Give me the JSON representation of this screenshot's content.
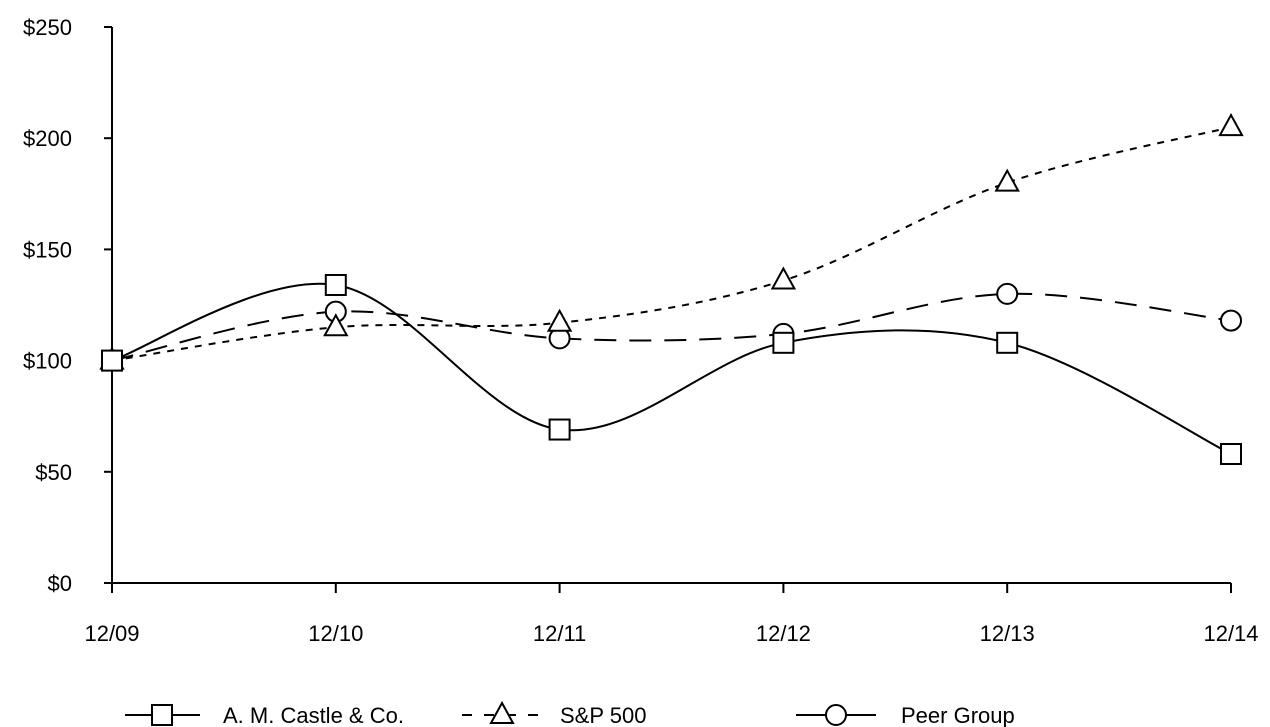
{
  "chart_data": {
    "type": "line",
    "title": "",
    "xlabel": "",
    "ylabel": "",
    "categories": [
      "12/09",
      "12/10",
      "12/11",
      "12/12",
      "12/13",
      "12/14"
    ],
    "y_ticks": [
      "$0",
      "$50",
      "$100",
      "$150",
      "$200",
      "$250"
    ],
    "y_tick_values": [
      0,
      50,
      100,
      150,
      200,
      250
    ],
    "ylim": [
      0,
      250
    ],
    "grid": false,
    "legend_position": "bottom",
    "series": [
      {
        "name": "A. M. Castle & Co.",
        "values": [
          100,
          134,
          69,
          108,
          108,
          58
        ],
        "marker": "square",
        "line_style": "solid"
      },
      {
        "name": "S&P 500",
        "values": [
          100,
          115,
          117,
          136,
          180,
          205
        ],
        "marker": "triangle",
        "line_style": "short-dash"
      },
      {
        "name": "Peer Group",
        "values": [
          100,
          122,
          110,
          112,
          130,
          118
        ],
        "marker": "circle",
        "line_style": "long-dash"
      }
    ]
  }
}
